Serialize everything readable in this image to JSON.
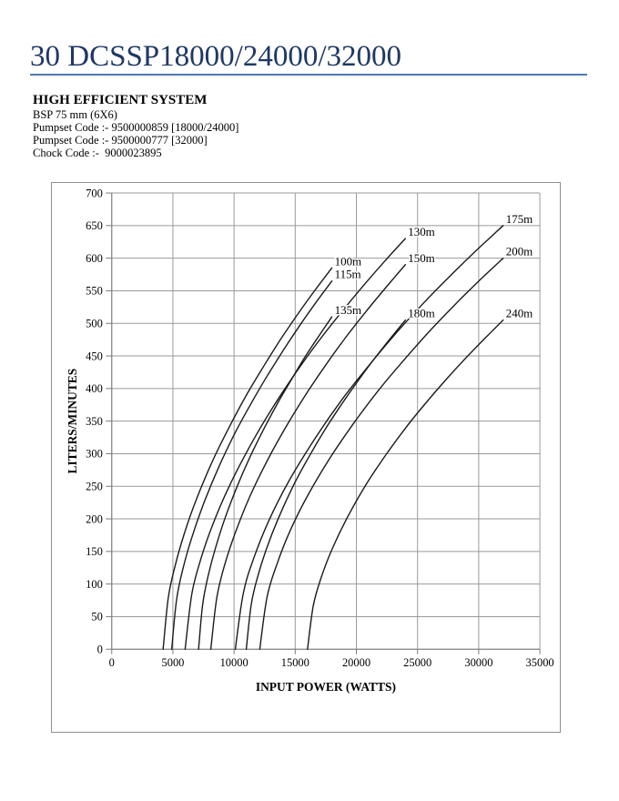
{
  "page": {
    "title": "30 DCSSP18000/24000/32000"
  },
  "header": {
    "system": "HIGH EFFICIENT SYSTEM",
    "bsp": "BSP 75 mm (6X6)",
    "pumpset_code_1": "Pumpset Code :- 9500000859 [18000/24000]",
    "pumpset_code_2": "Pumpset Code :- 9500000777 [32000]",
    "chock_code": "Chock Code :-  9000023895"
  },
  "colors": {
    "title": "#1f3864",
    "rule": "#4a7ab5",
    "grid": "#9a9a9a",
    "axis": "#7a7a7a",
    "curve": "#1a1a1a",
    "text": "#000000"
  },
  "chart_data": {
    "type": "line",
    "title": "",
    "xlabel": "INPUT POWER (WATTS)",
    "ylabel": "LITERS/MINUTES",
    "xlim": [
      0,
      35000
    ],
    "ylim": [
      0,
      700
    ],
    "xticks": [
      0,
      5000,
      10000,
      15000,
      20000,
      25000,
      30000,
      35000
    ],
    "yticks": [
      0,
      50,
      100,
      150,
      200,
      250,
      300,
      350,
      400,
      450,
      500,
      550,
      600,
      650,
      700
    ],
    "grid": true,
    "legend_position": "labels-at-line-ends",
    "series": [
      {
        "name": "100m",
        "points": [
          [
            4200,
            0
          ],
          [
            4614,
            78
          ],
          [
            5166,
            127
          ],
          [
            5925,
            177
          ],
          [
            6960,
            232
          ],
          [
            8340,
            293
          ],
          [
            9720,
            345
          ],
          [
            11100,
            393
          ],
          [
            12480,
            436
          ],
          [
            13860,
            477
          ],
          [
            15240,
            515
          ],
          [
            16620,
            551
          ],
          [
            18000,
            585
          ]
        ]
      },
      {
        "name": "115m",
        "points": [
          [
            4900,
            0
          ],
          [
            5293,
            75
          ],
          [
            5817,
            123
          ],
          [
            6538,
            171
          ],
          [
            7520,
            224
          ],
          [
            8830,
            283
          ],
          [
            10140,
            334
          ],
          [
            11450,
            379
          ],
          [
            12760,
            421
          ],
          [
            14070,
            460
          ],
          [
            15380,
            497
          ],
          [
            16690,
            532
          ],
          [
            18000,
            565
          ]
        ]
      },
      {
        "name": "130m",
        "points": [
          [
            6000,
            0
          ],
          [
            6540,
            84
          ],
          [
            7260,
            137
          ],
          [
            8250,
            191
          ],
          [
            9600,
            250
          ],
          [
            11400,
            315
          ],
          [
            13200,
            372
          ],
          [
            15000,
            423
          ],
          [
            16800,
            470
          ],
          [
            18600,
            513
          ],
          [
            20400,
            554
          ],
          [
            22200,
            593
          ],
          [
            24000,
            630
          ]
        ]
      },
      {
        "name": "135m",
        "points": [
          [
            7100,
            0
          ],
          [
            7427,
            68
          ],
          [
            7863,
            111
          ],
          [
            8463,
            154
          ],
          [
            9280,
            202
          ],
          [
            10370,
            255
          ],
          [
            11460,
            301
          ],
          [
            12550,
            342
          ],
          [
            13640,
            380
          ],
          [
            14730,
            415
          ],
          [
            15820,
            449
          ],
          [
            16910,
            480
          ],
          [
            18000,
            510
          ]
        ]
      },
      {
        "name": "150m",
        "points": [
          [
            8100,
            0
          ],
          [
            8577,
            78
          ],
          [
            9213,
            128
          ],
          [
            10088,
            178
          ],
          [
            11280,
            234
          ],
          [
            12870,
            295
          ],
          [
            14460,
            348
          ],
          [
            16050,
            396
          ],
          [
            17640,
            440
          ],
          [
            19230,
            481
          ],
          [
            20820,
            519
          ],
          [
            22410,
            555
          ],
          [
            24000,
            590
          ]
        ]
      },
      {
        "name": "175m",
        "points": [
          [
            10100,
            0
          ],
          [
            10757,
            86
          ],
          [
            11633,
            141
          ],
          [
            12838,
            197
          ],
          [
            14480,
            258
          ],
          [
            16670,
            325
          ],
          [
            18860,
            384
          ],
          [
            21050,
            436
          ],
          [
            23240,
            485
          ],
          [
            25430,
            530
          ],
          [
            27620,
            572
          ],
          [
            29810,
            612
          ],
          [
            32000,
            650
          ]
        ]
      },
      {
        "name": "180m",
        "points": [
          [
            11000,
            0
          ],
          [
            11390,
            67
          ],
          [
            11910,
            110
          ],
          [
            12625,
            153
          ],
          [
            13600,
            200
          ],
          [
            14900,
            253
          ],
          [
            16200,
            298
          ],
          [
            17500,
            339
          ],
          [
            18800,
            376
          ],
          [
            20100,
            411
          ],
          [
            21400,
            444
          ],
          [
            22700,
            475
          ],
          [
            24000,
            505
          ]
        ]
      },
      {
        "name": "200m",
        "points": [
          [
            12100,
            0
          ],
          [
            12697,
            80
          ],
          [
            13493,
            130
          ],
          [
            14588,
            182
          ],
          [
            16080,
            238
          ],
          [
            18070,
            300
          ],
          [
            20060,
            354
          ],
          [
            22050,
            403
          ],
          [
            24040,
            447
          ],
          [
            26030,
            489
          ],
          [
            28020,
            528
          ],
          [
            30010,
            565
          ],
          [
            32000,
            600
          ]
        ]
      },
      {
        "name": "240m",
        "points": [
          [
            16000,
            0
          ],
          [
            16480,
            67
          ],
          [
            17120,
            110
          ],
          [
            18000,
            153
          ],
          [
            19200,
            200
          ],
          [
            20800,
            253
          ],
          [
            22400,
            298
          ],
          [
            24000,
            339
          ],
          [
            25600,
            376
          ],
          [
            27200,
            411
          ],
          [
            28800,
            444
          ],
          [
            30400,
            475
          ],
          [
            32000,
            505
          ]
        ]
      }
    ]
  }
}
